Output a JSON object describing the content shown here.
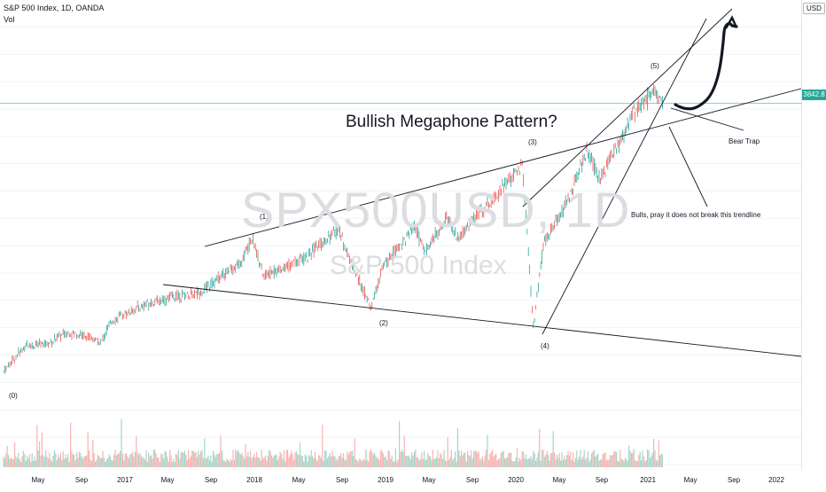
{
  "header": {
    "symbol_line": "S&P 500 Index, 1D, OANDA",
    "vol_label": "Vol",
    "currency_badge": "USD"
  },
  "watermark": {
    "ticker": "SPX500USD, 1D",
    "name": "S&P 500 Index"
  },
  "price_badge": "3842.8",
  "annotations": {
    "title": "Bullish Megaphone Pattern?",
    "bear_trap": "Bear Trap",
    "bulls_note": "Bulls, pray it does not break this trendline",
    "wave_0": "(0)",
    "wave_1": "(1)",
    "wave_2": "(2)",
    "wave_3": "(3)",
    "wave_4": "(4)",
    "wave_5": "(5)"
  },
  "colors": {
    "up": "#26a69a",
    "down": "#ef5350",
    "vol_up": "#a5d6c8",
    "vol_down": "#f7b3b1",
    "price_line": "#26a69a",
    "trendline": "#131722"
  },
  "chart_data": {
    "type": "line",
    "title": "S&P 500 Index, 1D, OANDA",
    "price_axis": {
      "ticks": [
        "1200.0",
        "1400.0",
        "1600.0",
        "1800.0",
        "2000.0",
        "2200.0",
        "2400.0",
        "2600.0",
        "2800.0",
        "3000.0",
        "3200.0",
        "3400.0",
        "3600.0",
        "3800.0",
        "4000.0",
        "4200.0",
        "4400.0"
      ],
      "ylim": [
        1180,
        4480
      ]
    },
    "time_axis": {
      "ticks": [
        "May",
        "Sep",
        "2017",
        "May",
        "Sep",
        "2018",
        "May",
        "Sep",
        "2019",
        "May",
        "Sep",
        "2020",
        "May",
        "Sep",
        "2021",
        "May",
        "Sep",
        "2022"
      ]
    },
    "series": [
      {
        "name": "S&P 500 Index",
        "points": [
          [
            "2016-02",
            1880
          ],
          [
            "2016-04",
            2070
          ],
          [
            "2016-06",
            2080
          ],
          [
            "2016-08",
            2170
          ],
          [
            "2016-10",
            2130
          ],
          [
            "2016-11",
            2090
          ],
          [
            "2016-12",
            2250
          ],
          [
            "2017-03",
            2370
          ],
          [
            "2017-06",
            2430
          ],
          [
            "2017-08",
            2450
          ],
          [
            "2017-10",
            2570
          ],
          [
            "2017-12",
            2680
          ],
          [
            "2018-01",
            2870
          ],
          [
            "2018-02",
            2580
          ],
          [
            "2018-04",
            2640
          ],
          [
            "2018-06",
            2720
          ],
          [
            "2018-09",
            2920
          ],
          [
            "2018-10",
            2700
          ],
          [
            "2018-12",
            2340
          ],
          [
            "2019-01",
            2630
          ],
          [
            "2019-04",
            2940
          ],
          [
            "2019-05",
            2750
          ],
          [
            "2019-07",
            3010
          ],
          [
            "2019-08",
            2850
          ],
          [
            "2019-10",
            3040
          ],
          [
            "2020-01",
            3300
          ],
          [
            "2020-02",
            3390
          ],
          [
            "2020-03",
            2200
          ],
          [
            "2020-04",
            2830
          ],
          [
            "2020-06",
            3100
          ],
          [
            "2020-08",
            3500
          ],
          [
            "2020-09",
            3290
          ],
          [
            "2020-11",
            3550
          ],
          [
            "2020-12",
            3750
          ],
          [
            "2021-01",
            3820
          ],
          [
            "2021-02",
            3920
          ],
          [
            "2021-03",
            3842
          ]
        ]
      }
    ]
  }
}
